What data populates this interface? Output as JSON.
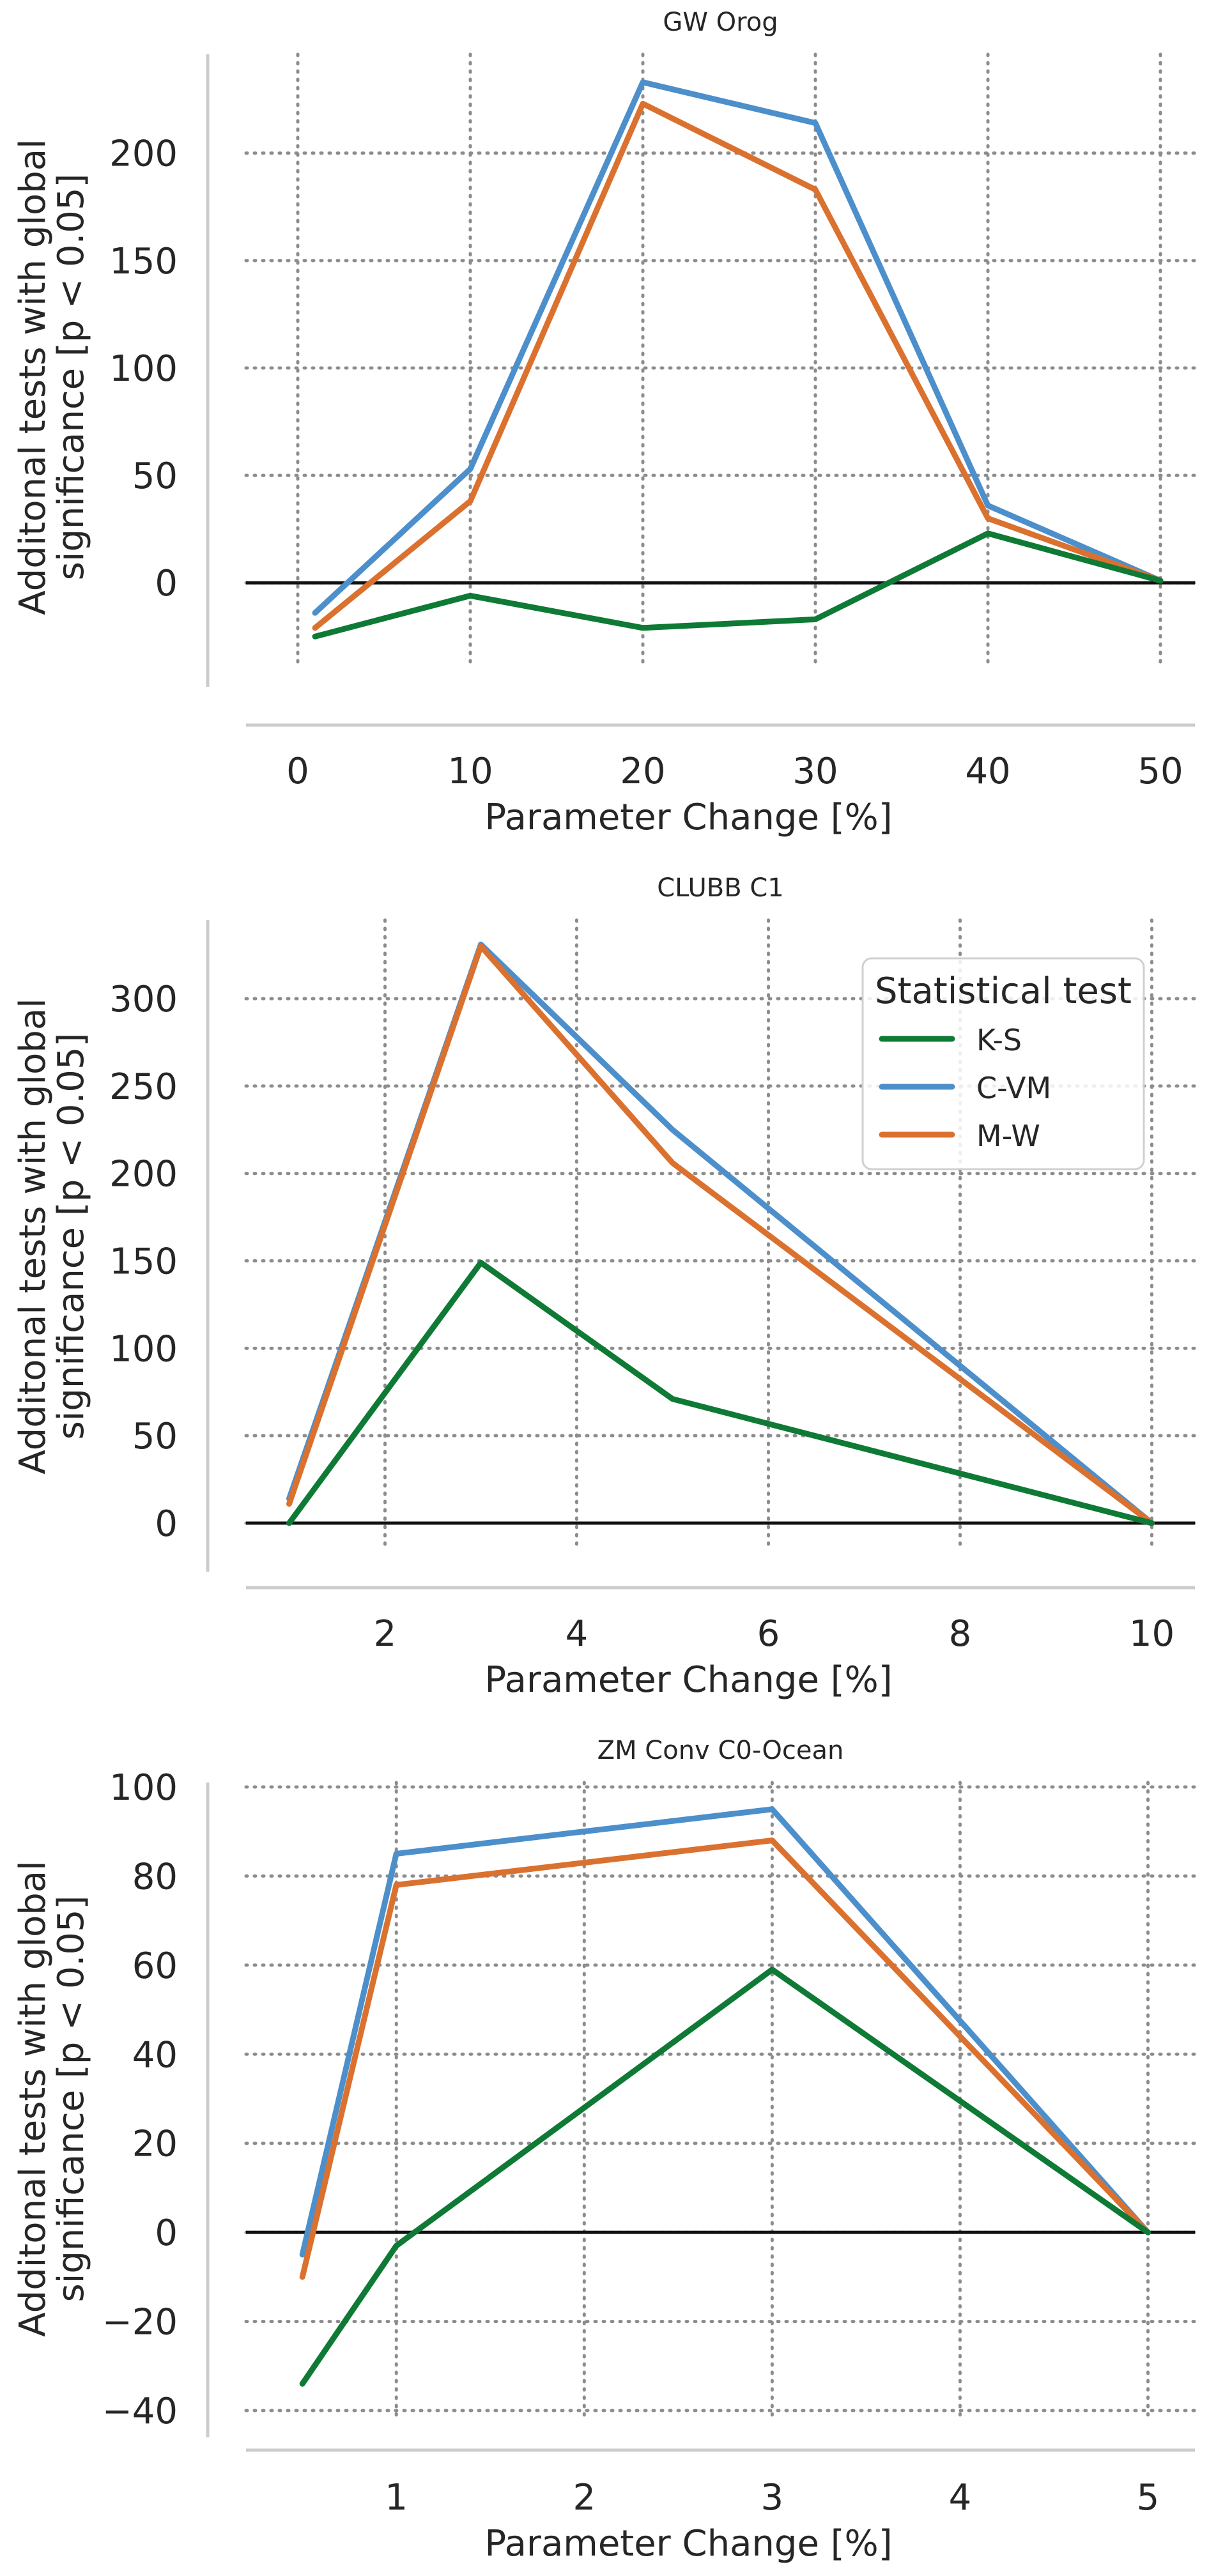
{
  "chart_data": [
    {
      "type": "line",
      "title": "GW Orog",
      "xlabel": "Parameter Change [%]",
      "ylabel_line1": "Additonal tests with global",
      "ylabel_line2": "significance [p < 0.05]",
      "xlim": [
        -3,
        52
      ],
      "ylim": [
        -38,
        246
      ],
      "xticks": [
        0,
        10,
        20,
        30,
        40,
        50
      ],
      "yticks": [
        0,
        50,
        100,
        150,
        200
      ],
      "xtick_labels": [
        "0",
        "10",
        "20",
        "30",
        "40",
        "50"
      ],
      "ytick_labels": [
        "0",
        "50",
        "100",
        "150",
        "200"
      ],
      "grid": true,
      "zero_line": true,
      "legend": null,
      "x": [
        1,
        10,
        20,
        30,
        40,
        50
      ],
      "series": [
        {
          "name": "K-S",
          "values": [
            -25,
            -6,
            -21,
            -17,
            23,
            1
          ]
        },
        {
          "name": "C-VM",
          "values": [
            -14,
            53,
            233,
            214,
            36,
            1
          ]
        },
        {
          "name": "M-W",
          "values": [
            -21,
            38,
            223,
            183,
            30,
            1
          ]
        }
      ]
    },
    {
      "type": "line",
      "title": "CLUBB C1",
      "xlabel": "Parameter Change [%]",
      "ylabel_line1": "Additonal tests with global",
      "ylabel_line2": "significance [p < 0.05]",
      "xlim": [
        0.55,
        10.45
      ],
      "ylim": [
        -15,
        345
      ],
      "xticks": [
        2,
        4,
        6,
        8,
        10
      ],
      "yticks": [
        0,
        50,
        100,
        150,
        200,
        250,
        300
      ],
      "xtick_labels": [
        "2",
        "4",
        "6",
        "8",
        "10"
      ],
      "ytick_labels": [
        "0",
        "50",
        "100",
        "150",
        "200",
        "250",
        "300"
      ],
      "grid": true,
      "zero_line": true,
      "legend": {
        "title": "Statistical test",
        "position": "top-right",
        "entries": [
          "K-S",
          "C-VM",
          "M-W"
        ]
      },
      "x": [
        1,
        3,
        5,
        10
      ],
      "series": [
        {
          "name": "K-S",
          "values": [
            0,
            149,
            71,
            0
          ]
        },
        {
          "name": "C-VM",
          "values": [
            14,
            331,
            225,
            0
          ]
        },
        {
          "name": "M-W",
          "values": [
            11,
            330,
            206,
            0
          ]
        }
      ]
    },
    {
      "type": "line",
      "title": "ZM Conv C0-Ocean",
      "xlabel": "Parameter Change [%]",
      "ylabel_line1": "Additonal tests with global",
      "ylabel_line2": "significance [p < 0.05]",
      "xlim": [
        0.2,
        5.25
      ],
      "ylim": [
        -41,
        101
      ],
      "xticks": [
        1,
        2,
        3,
        4,
        5
      ],
      "yticks": [
        -40,
        -20,
        0,
        20,
        40,
        60,
        80,
        100
      ],
      "xtick_labels": [
        "1",
        "2",
        "3",
        "4",
        "5"
      ],
      "ytick_labels": [
        "−40",
        "−20",
        "0",
        "20",
        "40",
        "60",
        "80",
        "100"
      ],
      "grid": true,
      "zero_line": true,
      "legend": null,
      "x": [
        0.5,
        1,
        3,
        5
      ],
      "series": [
        {
          "name": "K-S",
          "values": [
            -34,
            -3,
            59,
            0
          ]
        },
        {
          "name": "C-VM",
          "values": [
            -5,
            85,
            95,
            0
          ]
        },
        {
          "name": "M-W",
          "values": [
            -10,
            78,
            88,
            0
          ]
        }
      ]
    }
  ],
  "colors": {
    "K-S": "#0e7a35",
    "C-VM": "#4c8fcb",
    "M-W": "#db712f",
    "grid": "#8c8c8c",
    "spine": "#cccccc",
    "zero": "#111111",
    "text": "#262626"
  }
}
